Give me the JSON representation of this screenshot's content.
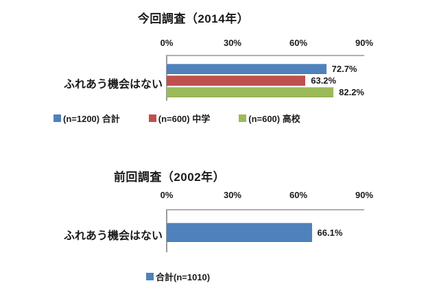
{
  "colors": {
    "series_blue": "#4F81BD",
    "series_red": "#C0504D",
    "series_green": "#9BBB59",
    "axis_gray": "#9A9A9A",
    "plot_border_gray": "#B0B0B0",
    "text": "#1A1A1A",
    "background": "#FFFFFF"
  },
  "chart_data": [
    {
      "type": "bar",
      "orientation": "horizontal",
      "title": "今回調査（2014年）",
      "categories": [
        "ふれあう機会はない"
      ],
      "xlim": [
        0,
        90
      ],
      "tick_labels": [
        "0%",
        "30%",
        "60%",
        "90%"
      ],
      "grid": false,
      "legend_position": "bottom",
      "series": [
        {
          "name": "(n=1200) 合計",
          "color": "#4F81BD",
          "values": [
            72.7
          ],
          "data_labels": [
            "72.7%"
          ]
        },
        {
          "name": "(n=600) 中学",
          "color": "#C0504D",
          "values": [
            63.2
          ],
          "data_labels": [
            "63.2%"
          ]
        },
        {
          "name": "(n=600) 高校",
          "color": "#9BBB59",
          "values": [
            82.2
          ],
          "data_labels": [
            "82.2%"
          ]
        }
      ]
    },
    {
      "type": "bar",
      "orientation": "horizontal",
      "title": "前回調査（2002年）",
      "categories": [
        "ふれあう機会はない"
      ],
      "xlim": [
        0,
        90
      ],
      "tick_labels": [
        "0%",
        "30%",
        "60%",
        "90%"
      ],
      "grid": false,
      "legend_position": "bottom",
      "series": [
        {
          "name": "合計(n=1010)",
          "color": "#4F81BD",
          "values": [
            66.1
          ],
          "data_labels": [
            "66.1%"
          ]
        }
      ]
    }
  ]
}
